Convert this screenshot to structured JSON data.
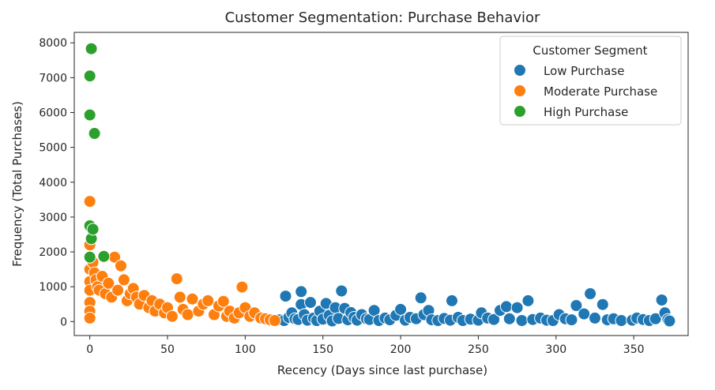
{
  "chart_data": {
    "type": "scatter",
    "title": "Customer Segmentation: Purchase Behavior",
    "xlabel": "Recency (Days since last purchase)",
    "ylabel": "Frequency (Total Purchases)",
    "xlim": [
      -10,
      385
    ],
    "ylim": [
      -400,
      8300
    ],
    "xticks": [
      0,
      50,
      100,
      150,
      200,
      250,
      300,
      350
    ],
    "yticks": [
      0,
      1000,
      2000,
      3000,
      4000,
      5000,
      6000,
      7000,
      8000
    ],
    "grid": false,
    "legend": {
      "title": "Customer Segment",
      "placement": "top-right"
    },
    "series": [
      {
        "name": "Low Purchase",
        "color": "#1f77b4",
        "points": [
          [
            122,
            50
          ],
          [
            125,
            30
          ],
          [
            126,
            730
          ],
          [
            128,
            120
          ],
          [
            130,
            250
          ],
          [
            132,
            80
          ],
          [
            134,
            60
          ],
          [
            136,
            860
          ],
          [
            136,
            490
          ],
          [
            138,
            200
          ],
          [
            140,
            40
          ],
          [
            142,
            550
          ],
          [
            144,
            100
          ],
          [
            146,
            30
          ],
          [
            148,
            300
          ],
          [
            150,
            70
          ],
          [
            152,
            520
          ],
          [
            154,
            180
          ],
          [
            156,
            20
          ],
          [
            158,
            400
          ],
          [
            160,
            90
          ],
          [
            162,
            880
          ],
          [
            164,
            380
          ],
          [
            166,
            50
          ],
          [
            168,
            260
          ],
          [
            170,
            120
          ],
          [
            172,
            40
          ],
          [
            175,
            200
          ],
          [
            178,
            80
          ],
          [
            180,
            60
          ],
          [
            183,
            320
          ],
          [
            186,
            30
          ],
          [
            190,
            100
          ],
          [
            193,
            50
          ],
          [
            197,
            180
          ],
          [
            200,
            350
          ],
          [
            203,
            40
          ],
          [
            206,
            120
          ],
          [
            210,
            80
          ],
          [
            213,
            680
          ],
          [
            215,
            200
          ],
          [
            218,
            320
          ],
          [
            220,
            50
          ],
          [
            224,
            30
          ],
          [
            228,
            90
          ],
          [
            232,
            40
          ],
          [
            233,
            600
          ],
          [
            237,
            120
          ],
          [
            240,
            30
          ],
          [
            245,
            70
          ],
          [
            250,
            40
          ],
          [
            252,
            250
          ],
          [
            256,
            100
          ],
          [
            260,
            60
          ],
          [
            264,
            320
          ],
          [
            268,
            430
          ],
          [
            270,
            80
          ],
          [
            275,
            400
          ],
          [
            278,
            30
          ],
          [
            282,
            600
          ],
          [
            285,
            60
          ],
          [
            290,
            100
          ],
          [
            294,
            40
          ],
          [
            298,
            30
          ],
          [
            302,
            200
          ],
          [
            306,
            80
          ],
          [
            310,
            50
          ],
          [
            313,
            460
          ],
          [
            318,
            220
          ],
          [
            322,
            800
          ],
          [
            325,
            100
          ],
          [
            330,
            490
          ],
          [
            333,
            50
          ],
          [
            337,
            80
          ],
          [
            342,
            30
          ],
          [
            349,
            40
          ],
          [
            352,
            100
          ],
          [
            356,
            60
          ],
          [
            360,
            30
          ],
          [
            364,
            80
          ],
          [
            368,
            620
          ],
          [
            370,
            250
          ],
          [
            372,
            60
          ],
          [
            373,
            20
          ]
        ]
      },
      {
        "name": "Moderate Purchase",
        "color": "#ff7f0e",
        "points": [
          [
            0,
            3450
          ],
          [
            0,
            2200
          ],
          [
            0,
            1850
          ],
          [
            0,
            1500
          ],
          [
            0,
            1150
          ],
          [
            0,
            900
          ],
          [
            0,
            550
          ],
          [
            0,
            300
          ],
          [
            0,
            100
          ],
          [
            2,
            1700
          ],
          [
            3,
            1400
          ],
          [
            4,
            1200
          ],
          [
            5,
            1000
          ],
          [
            6,
            900
          ],
          [
            8,
            1300
          ],
          [
            10,
            800
          ],
          [
            12,
            1100
          ],
          [
            14,
            700
          ],
          [
            16,
            1850
          ],
          [
            18,
            900
          ],
          [
            20,
            1600
          ],
          [
            22,
            1200
          ],
          [
            24,
            600
          ],
          [
            26,
            800
          ],
          [
            28,
            950
          ],
          [
            30,
            700
          ],
          [
            32,
            500
          ],
          [
            35,
            750
          ],
          [
            38,
            400
          ],
          [
            40,
            600
          ],
          [
            42,
            300
          ],
          [
            45,
            500
          ],
          [
            48,
            250
          ],
          [
            50,
            400
          ],
          [
            53,
            150
          ],
          [
            56,
            1230
          ],
          [
            58,
            700
          ],
          [
            60,
            350
          ],
          [
            63,
            200
          ],
          [
            66,
            650
          ],
          [
            70,
            300
          ],
          [
            73,
            500
          ],
          [
            76,
            600
          ],
          [
            80,
            200
          ],
          [
            83,
            450
          ],
          [
            86,
            580
          ],
          [
            88,
            150
          ],
          [
            90,
            300
          ],
          [
            93,
            100
          ],
          [
            96,
            250
          ],
          [
            98,
            990
          ],
          [
            100,
            400
          ],
          [
            103,
            150
          ],
          [
            106,
            250
          ],
          [
            110,
            100
          ],
          [
            113,
            80
          ],
          [
            116,
            50
          ],
          [
            119,
            30
          ]
        ]
      },
      {
        "name": "High Purchase",
        "color": "#2ca02c",
        "points": [
          [
            0,
            7050
          ],
          [
            0,
            5930
          ],
          [
            0,
            2750
          ],
          [
            0,
            1850
          ],
          [
            1,
            7830
          ],
          [
            1,
            2380
          ],
          [
            2,
            2650
          ],
          [
            3,
            5400
          ],
          [
            9,
            1870
          ]
        ]
      }
    ]
  }
}
